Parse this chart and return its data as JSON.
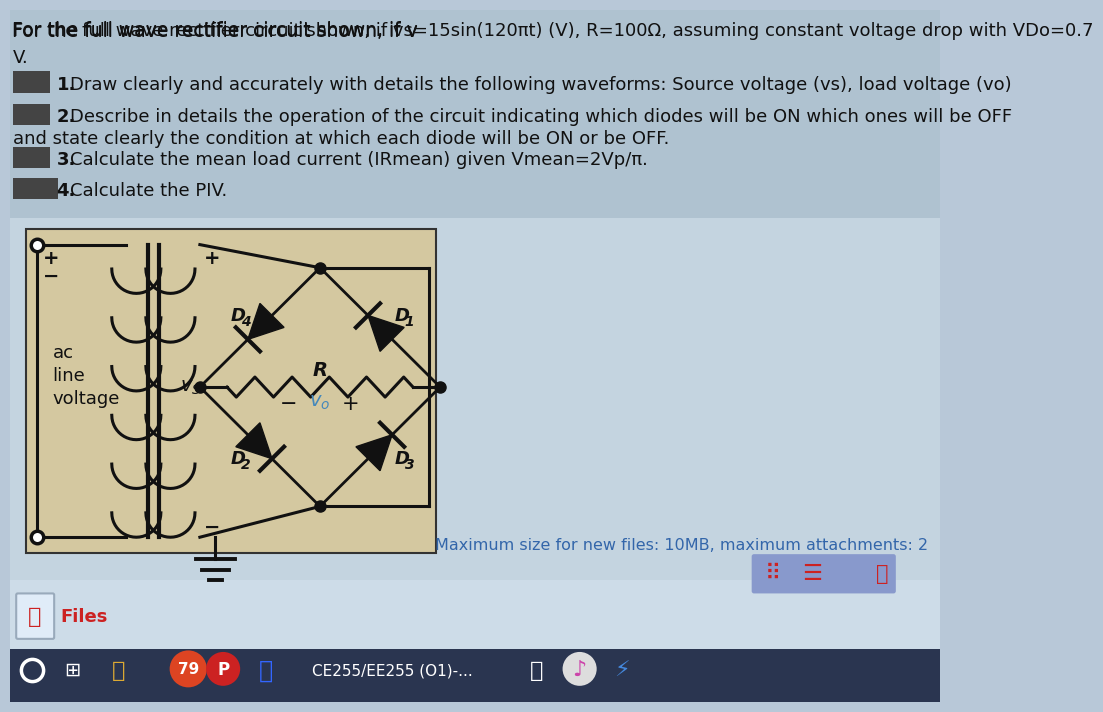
{
  "bg_color": "#b8c8d8",
  "bg_circuit": "#c8d8e4",
  "bg_bottom_area": "#d0dce8",
  "bg_taskbar": "#2a3550",
  "text_color": "#111111",
  "circuit_color": "#111111",
  "vo_color": "#4488bb",
  "max_text": "Maximum size for new files: 10MB, maximum attachments: 2",
  "max_text_color": "#3366aa",
  "files_text": "Files",
  "page_number": "79",
  "course_text": "CE255/EE255 (O1)-...",
  "title": "For the full wave rectifier circuit shown, if v",
  "title2": "=15sin(120πt) (V), R=100Ω, assuming constant voltage drop with V",
  "title3": "Do",
  "title4": "=0.7",
  "line1": "V.",
  "item1_num": "1.",
  "item1_text": "Draw clearly and accurately with details the following waveforms: Source voltage (v",
  "item1_s": "s",
  "item1_end": "), load voltage (v",
  "item1_o": "o",
  "item1_close": ")",
  "item2_num": "2.",
  "item2_text": "Describe in details the operation of the circuit indicating which diodes will be ON which ones will be OFF",
  "item2b": "and state clearly the condition at which each diode will be ON or be OFF.",
  "item3_num": "3.",
  "item3_text": "Calculate the mean load current (I",
  "item3_sub": "Rmean",
  "item3_end": ") given V",
  "item3_msub": "mean",
  "item3_eq": "=2Vp/π.",
  "item4_num": "4.",
  "item4_text": "Calculate the PIV.",
  "ac_text": "ac",
  "line_text": "line",
  "voltage_text": "voltage",
  "vs_text": "v",
  "vs_sub": "S",
  "R_text": "R",
  "D1": "D",
  "D1s": "1",
  "D2": "D",
  "D2s": "2",
  "D3": "D",
  "D3s": "3",
  "D4": "D",
  "D4s": "4"
}
